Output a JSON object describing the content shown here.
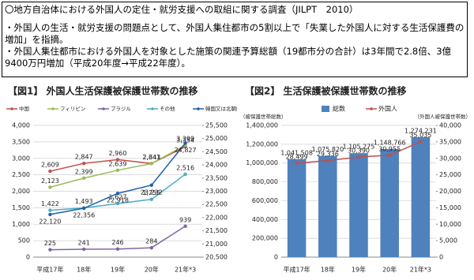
{
  "header": {
    "title": "〇地方自治体における外国人の定住・就労支援への取組に関する調査（JILPT　2010）",
    "bullets": [
      "・外国人の生活・就労支援の問題点として、外国人集住都市の5割以上で「失業した外国人に対する生活保護費の増加」を指摘。",
      "・外国人集住都市における外国人を対象とした施策の関連予算総額（19都市分の合計）は3年間で2.8倍、3億9400万円増加（平成20年度→平成22年度）。"
    ]
  },
  "chart_data": [
    {
      "type": "line",
      "title": "【図1】 外国人生活保護被保護世帯数の推移",
      "categories": [
        "平成17年",
        "18年",
        "19年",
        "20年",
        "21年*3"
      ],
      "ylim": [
        0,
        4000
      ],
      "yticks": [
        0,
        500,
        {
          "value": 1000,
          "label": "1,000"
        },
        {
          "value": 1500,
          "label": "1,500"
        },
        {
          "value": 2000,
          "label": "2,000"
        },
        {
          "value": 2500,
          "label": "2,500"
        },
        {
          "value": 3000,
          "label": "3,000"
        },
        {
          "value": 3500,
          "label": "3,500"
        },
        {
          "value": 4000,
          "label": "4,000"
        }
      ],
      "y2lim": [
        20500,
        25500
      ],
      "y2ticks": [
        {
          "value": 20500,
          "label": "20,500"
        },
        {
          "value": 21000,
          "label": "21,000"
        },
        {
          "value": 21500,
          "label": "21,500"
        },
        {
          "value": 22000,
          "label": "22,000"
        },
        {
          "value": 22500,
          "label": "22,500"
        },
        {
          "value": 23000,
          "label": "23,000"
        },
        {
          "value": 23500,
          "label": "23,500"
        },
        {
          "value": 24000,
          "label": "24,000"
        },
        {
          "value": 24500,
          "label": "24,500"
        },
        {
          "value": 25000,
          "label": "25,000"
        },
        {
          "value": 25500,
          "label": "25,500"
        }
      ],
      "grid": true,
      "series": [
        {
          "name": "中国",
          "color": "#c0504d",
          "values": [
            2609,
            2847,
            2960,
            2843,
            3354
          ],
          "value_labels": [
            "2,609",
            "2,847",
            "2,960",
            "2,843",
            "3,354"
          ]
        },
        {
          "name": "フィリピン",
          "color": "#9bbb59",
          "values": [
            2123,
            2399,
            2639,
            2841,
            3399
          ],
          "value_labels": [
            "2,123",
            "2,399",
            "2,639",
            "2,841",
            "3,399"
          ]
        },
        {
          "name": "ブラジル",
          "color": "#8064a2",
          "values": [
            225,
            241,
            246,
            284,
            939
          ]
        },
        {
          "name": "その他",
          "color": "#4bacc6",
          "values": [
            1422,
            1493,
            1627,
            1755,
            2516
          ],
          "value_labels": [
            "1,422",
            "1,493",
            "1,627",
            "1,755",
            "2,516"
          ]
        },
        {
          "name": "韓国又は北朝鮮（右軸）",
          "color": "#1f5fa8",
          "axis": "y2",
          "values": [
            22120,
            22356,
            22918,
            23232,
            24827
          ],
          "value_labels": [
            "22,120",
            "22,356",
            "22,918",
            "23,232",
            "24,827"
          ]
        }
      ]
    },
    {
      "type": "bar",
      "title": "【図2】 生活保護被保護世帯数の推移",
      "y_label": "（被保護世帯総数）",
      "y2_label": "（外国人被保護世帯数）",
      "categories": [
        "平成17年",
        "18年",
        "19年",
        "20年",
        "21年*3"
      ],
      "ylim": [
        0,
        1400000
      ],
      "yticks": [
        0,
        {
          "value": 200000,
          "label": "200,000"
        },
        {
          "value": 400000,
          "label": "400,000"
        },
        {
          "value": 600000,
          "label": "600,000"
        },
        {
          "value": 800000,
          "label": "800,000"
        },
        {
          "value": 1000000,
          "label": "1,000,000"
        },
        {
          "value": 1200000,
          "label": "1,200,000"
        },
        {
          "value": 1400000,
          "label": "1,400,000"
        }
      ],
      "y2lim": [
        0,
        40000
      ],
      "y2ticks": [
        0,
        {
          "value": 5000,
          "label": "5,000"
        },
        {
          "value": 10000,
          "label": "10,000"
        },
        {
          "value": 15000,
          "label": "15,000"
        },
        {
          "value": 20000,
          "label": "20,000"
        },
        {
          "value": 25000,
          "label": "25,000"
        },
        {
          "value": 30000,
          "label": "30,000"
        },
        {
          "value": 35000,
          "label": "35,000"
        },
        {
          "value": 40000,
          "label": "40,000"
        }
      ],
      "grid": true,
      "series": [
        {
          "name": "総数",
          "color": "#4f81bd",
          "values": [
            1041508,
            1075820,
            1105275,
            1148766,
            1274231
          ],
          "value_labels": [
            "1,041,508",
            "1,075,820",
            "1,105,275",
            "1,148,766",
            "1,274,231"
          ]
        },
        {
          "name": "外国人",
          "color": "#c0504d",
          "type": "line",
          "axis": "y2",
          "values": [
            28499,
            29336,
            30390,
            30955,
            35035
          ],
          "value_labels": [
            "28,499",
            "29,336",
            "30,390",
            "30,955",
            "35,035"
          ]
        }
      ]
    }
  ]
}
